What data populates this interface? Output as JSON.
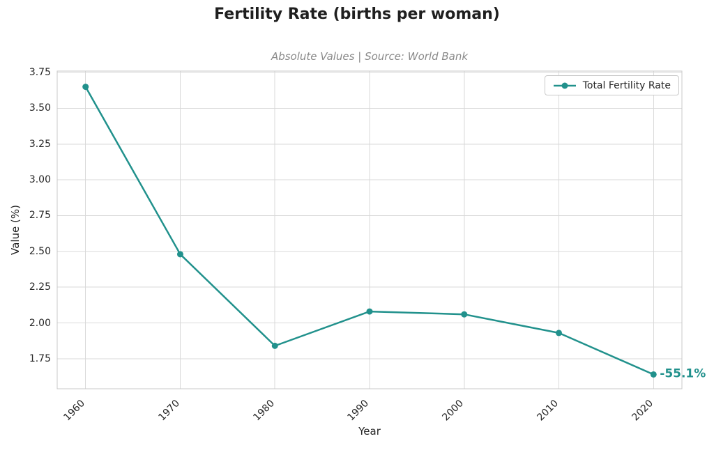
{
  "figure": {
    "title": "Fertility Rate (births per woman)",
    "subtitle": "Absolute Values | Source: World Bank"
  },
  "chart_data": {
    "type": "line",
    "title": "Fertility Rate (births per woman)",
    "subtitle": "Absolute Values | Source: World Bank",
    "xlabel": "Year",
    "ylabel": "Value (%)",
    "x": [
      1960,
      1970,
      1980,
      1990,
      2000,
      2010,
      2020
    ],
    "series": [
      {
        "name": "Total Fertility Rate",
        "color": "#21918c",
        "values": [
          3.65,
          2.48,
          1.84,
          2.08,
          2.06,
          1.93,
          1.64
        ]
      }
    ],
    "xticks": [
      1960,
      1970,
      1980,
      1990,
      2000,
      2010,
      2020
    ],
    "yticks": [
      1.75,
      2.0,
      2.25,
      2.5,
      2.75,
      3.0,
      3.25,
      3.5,
      3.75
    ],
    "xlim": [
      1957,
      2023
    ],
    "ylim": [
      1.54,
      3.76
    ],
    "grid": true,
    "legend": {
      "position": "upper-right",
      "entries": [
        "Total Fertility Rate"
      ]
    },
    "annotation": {
      "text": "-55.1%",
      "x": 2020,
      "y": 1.64
    }
  },
  "colors": {
    "accent": "#21918c",
    "grid": "#d9d9d9",
    "spine": "#c9c9c9",
    "text": "#262626",
    "subtitle_text": "#8a8a8a"
  }
}
